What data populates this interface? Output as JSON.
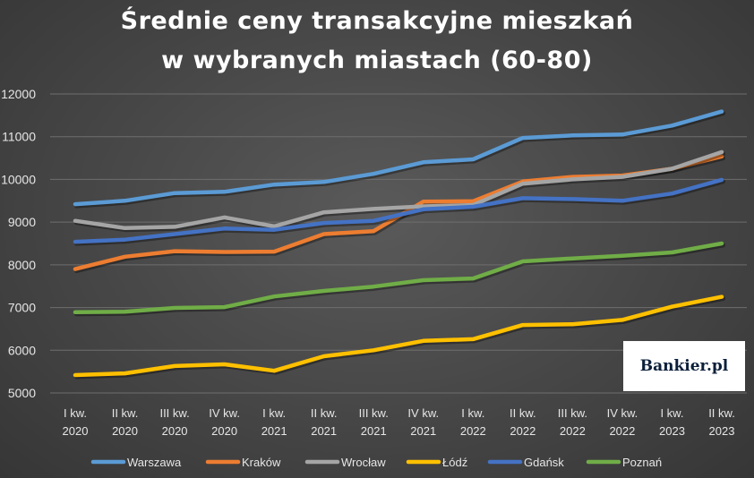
{
  "chart_data": {
    "type": "line",
    "title_line1": "Średnie ceny transakcyjne mieszkań",
    "title_line2": "w wybranych miastach (60-80)",
    "categories": [
      [
        "I kw.",
        "2020"
      ],
      [
        "II kw.",
        "2020"
      ],
      [
        "III kw.",
        "2020"
      ],
      [
        "IV kw.",
        "2020"
      ],
      [
        "I kw.",
        "2021"
      ],
      [
        "II kw.",
        "2021"
      ],
      [
        "III kw.",
        "2021"
      ],
      [
        "IV kw.",
        "2021"
      ],
      [
        "I kw.",
        "2022"
      ],
      [
        "II kw.",
        "2022"
      ],
      [
        "III kw.",
        "2022"
      ],
      [
        "IV kw.",
        "2022"
      ],
      [
        "I kw.",
        "2023"
      ],
      [
        "II kw.",
        "2023"
      ]
    ],
    "ylim": [
      5000,
      12000
    ],
    "yticks": [
      5000,
      6000,
      7000,
      8000,
      9000,
      10000,
      11000,
      12000
    ],
    "grid": true,
    "legend_position": "bottom",
    "series": [
      {
        "name": "Warszawa",
        "color": "#5b9bd5",
        "values": [
          9420,
          9500,
          9680,
          9710,
          9880,
          9940,
          10130,
          10400,
          10470,
          10970,
          11030,
          11050,
          11260,
          11590
        ]
      },
      {
        "name": "Kraków",
        "color": "#ed7d31",
        "values": [
          7900,
          8190,
          8320,
          8300,
          8310,
          8720,
          8790,
          9480,
          9490,
          9950,
          10060,
          10090,
          10250,
          10540
        ]
      },
      {
        "name": "Wrocław",
        "color": "#a5a5a5",
        "values": [
          9030,
          8860,
          8890,
          9110,
          8900,
          9230,
          9310,
          9370,
          9400,
          9900,
          10000,
          10060,
          10250,
          10640
        ]
      },
      {
        "name": "Łódź",
        "color": "#ffc000",
        "values": [
          5420,
          5460,
          5630,
          5670,
          5520,
          5860,
          6000,
          6220,
          6260,
          6590,
          6610,
          6710,
          7020,
          7250
        ]
      },
      {
        "name": "Gdańsk",
        "color": "#4472c4",
        "values": [
          8540,
          8590,
          8720,
          8850,
          8820,
          8980,
          9030,
          9300,
          9360,
          9560,
          9540,
          9500,
          9670,
          9990
        ]
      },
      {
        "name": "Poznań",
        "color": "#70ad47",
        "values": [
          6890,
          6900,
          6990,
          7010,
          7260,
          7390,
          7490,
          7640,
          7680,
          8080,
          8150,
          8210,
          8290,
          8500
        ]
      }
    ]
  },
  "logo": {
    "text": "Bankier.pl"
  }
}
